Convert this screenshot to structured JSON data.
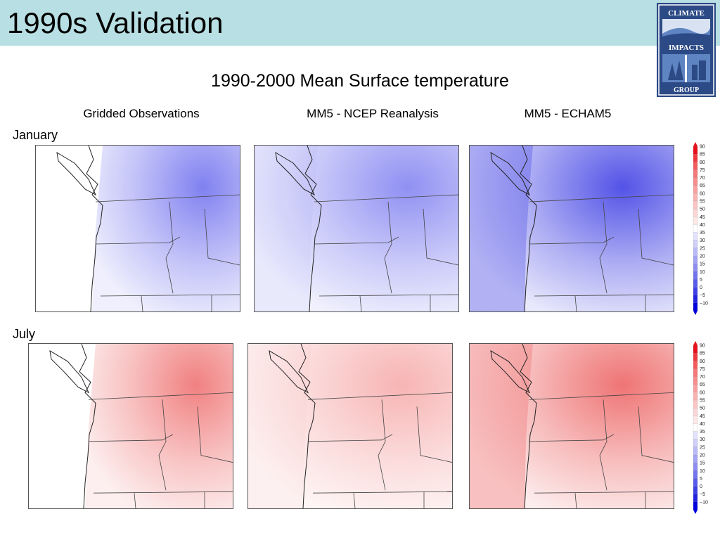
{
  "slide": {
    "title": "1990s Validation",
    "subtitle": "1990-2000 Mean Surface temperature"
  },
  "logo": {
    "line1": "CLIMATE",
    "line2": "IMPACTS",
    "line3": "GROUP",
    "colors": {
      "navy": "#2c4a86",
      "blue": "#5f84c2"
    }
  },
  "columns": [
    "Gridded Observations",
    "MM5 - NCEP Reanalysis",
    "MM5 - ECHAM5"
  ],
  "rows": [
    "January",
    "July"
  ],
  "colorbar": {
    "ticks": [
      "90",
      "85",
      "80",
      "75",
      "70",
      "65",
      "60",
      "55",
      "50",
      "45",
      "40",
      "35",
      "30",
      "25",
      "20",
      "15",
      "10",
      "5",
      "0",
      "−5",
      "−10"
    ],
    "colors": [
      "#e8101a",
      "#ee3a3f",
      "#f25c5e",
      "#f4777a",
      "#f68c8e",
      "#f8a0a1",
      "#f9b3b3",
      "#fbc5c5",
      "#fcd6d6",
      "#fde7e7",
      "#ffffff",
      "#e3e3fd",
      "#cfcffa",
      "#babaf7",
      "#a4a4f4",
      "#8d8df1",
      "#7474ee",
      "#5b5beb",
      "#3f3fe6",
      "#2323e0",
      "#0000dc"
    ]
  },
  "map_colors": {
    "jan_obs": "#7a7af0",
    "jan_ncep": "#8a8af2",
    "jan_echam": "#4a4ae6",
    "jul_obs": "#f07a7a",
    "jul_ncep": "#f7b0b0",
    "jul_echam": "#ee6d6d"
  }
}
